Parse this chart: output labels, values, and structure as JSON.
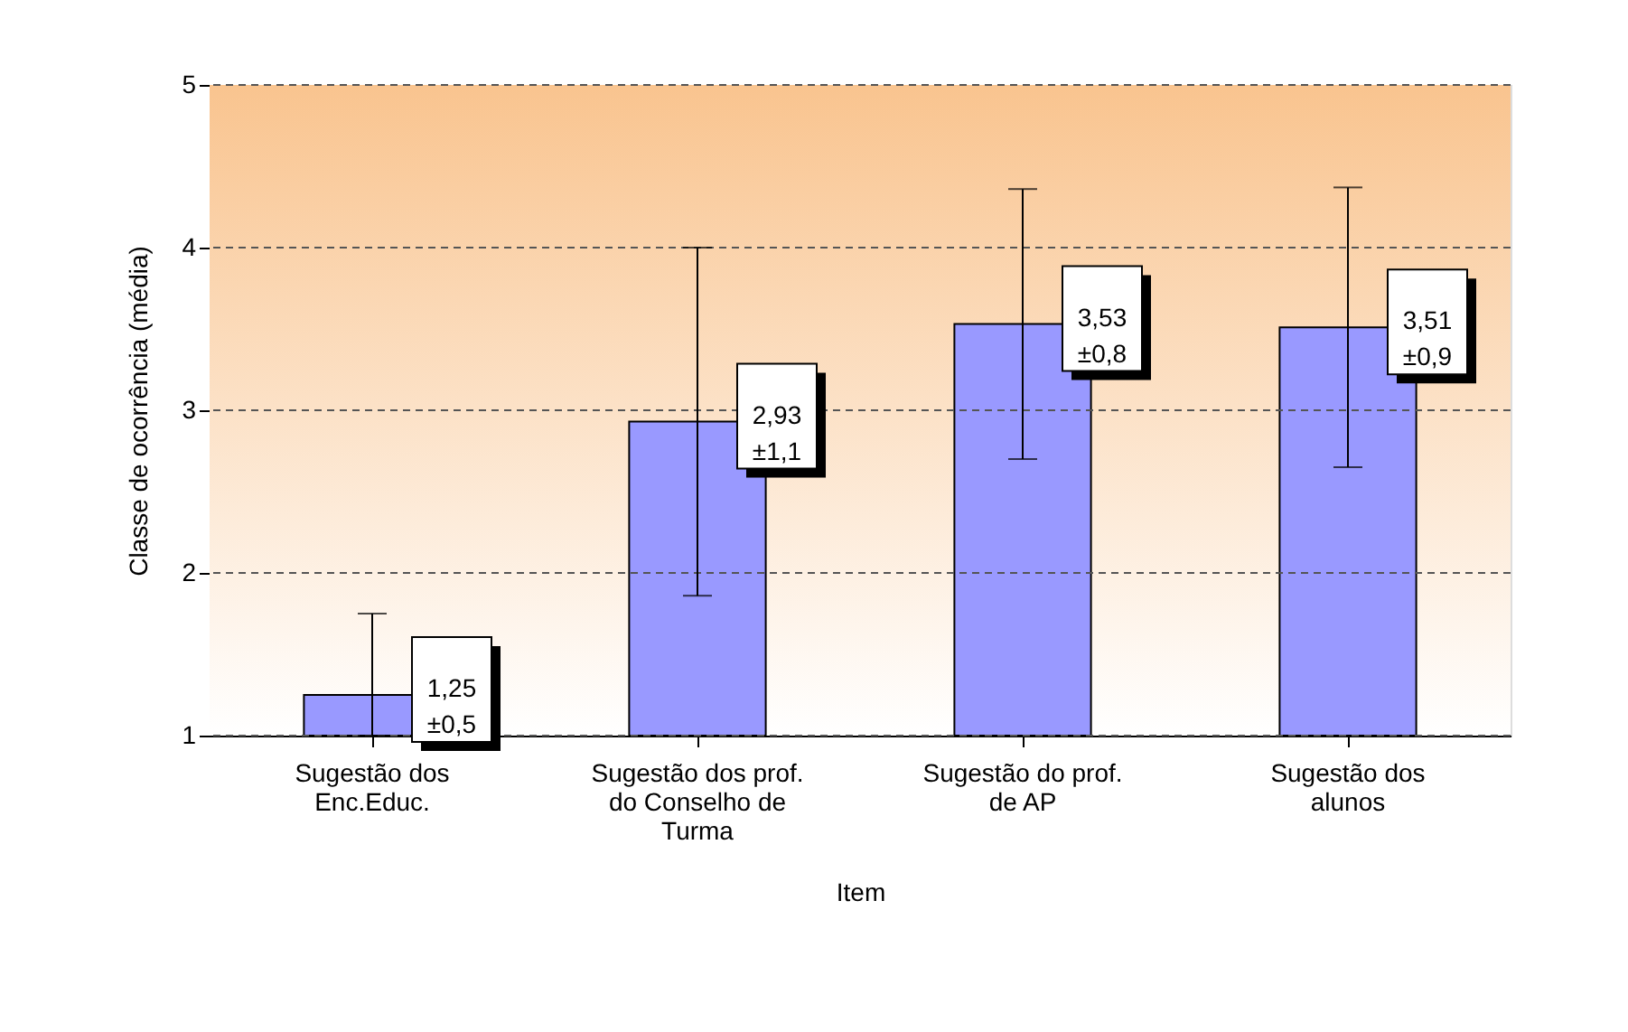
{
  "chart_data": {
    "type": "bar",
    "xlabel": "Item",
    "ylabel": "Classe de ocorrência (média)",
    "categories": [
      "Sugestão dos Enc.Educ.",
      "Sugestão dos prof. do Conselho de Turma",
      "Sugestão do prof. de AP",
      "Sugestão dos alunos"
    ],
    "values": [
      1.25,
      2.93,
      3.53,
      3.51
    ],
    "errors": [
      [
        1,
        1.75
      ],
      1.07,
      0.83,
      0.86
    ],
    "value_labels": [
      "1,25\n±0,5",
      "2,93\n±1,1",
      "3,53\n±0,8",
      "3,51\n±0,9"
    ],
    "color": "#9999ff",
    "ylim": [
      1,
      5
    ],
    "yticks": [
      1,
      2,
      3,
      4,
      5
    ],
    "grid": "y"
  }
}
